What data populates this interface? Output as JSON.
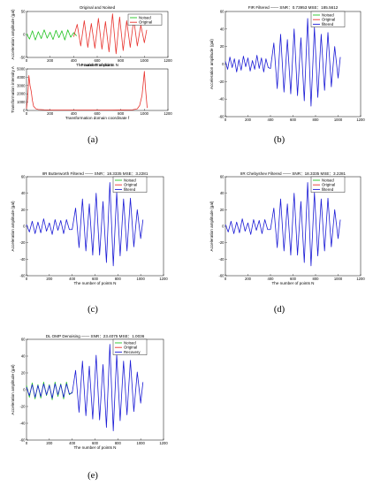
{
  "colors": {
    "noised": "#22c322",
    "original": "#e8332e",
    "filtered": "#1c1cd6",
    "fourier": "#e8332e",
    "fourierBase": "#22c322"
  },
  "captions": [
    "(a)",
    "(b)",
    "(c)",
    "(d)",
    "(e)"
  ],
  "chart_data": [
    {
      "id": "a1",
      "type": "line",
      "title": "Original and Noised",
      "xlabel": "The number of points N",
      "ylabel": "Acceleration amplitude (gal)",
      "xlim": [
        0,
        1200
      ],
      "ylim": [
        -50,
        50
      ],
      "xticks": [
        "0",
        "200",
        "400",
        "600",
        "800",
        "1000",
        "1200"
      ],
      "yticks": [
        "-50",
        "0",
        "50"
      ],
      "legend": {
        "position": "top-right",
        "entries": [
          "Noised",
          "Original"
        ]
      },
      "series": [
        {
          "name": "Noised",
          "color_key": "noised",
          "x": [
            0,
            25,
            50,
            75,
            100,
            125,
            150,
            175,
            200,
            225,
            250,
            275,
            300,
            325,
            350,
            375,
            400,
            425
          ],
          "y": [
            2,
            -10,
            8,
            -12,
            6,
            -9,
            10,
            -8,
            5,
            -11,
            9,
            -7,
            8,
            -12,
            10,
            -6,
            4,
            -3
          ]
        },
        {
          "name": "Original",
          "color_key": "original",
          "x": [
            400,
            430,
            460,
            490,
            520,
            550,
            580,
            610,
            640,
            670,
            700,
            730,
            760,
            790,
            820,
            850,
            880,
            910,
            940,
            970,
            1000,
            1020
          ],
          "y": [
            -5,
            22,
            -25,
            30,
            -28,
            24,
            -30,
            35,
            -32,
            28,
            -38,
            45,
            -42,
            38,
            -35,
            30,
            -28,
            33,
            -25,
            20,
            -18,
            10
          ]
        }
      ]
    },
    {
      "id": "a2",
      "type": "line",
      "title": "Fourier Transform",
      "xlabel": "Transformation domain coordinate f",
      "ylabel": "Transformation intensity A",
      "xlim": [
        0,
        1200
      ],
      "ylim": [
        0,
        5000
      ],
      "xticks": [
        "0",
        "200",
        "400",
        "600",
        "800",
        "1000",
        "1200"
      ],
      "yticks": [
        "0",
        "1000",
        "2000",
        "3000",
        "4000",
        "5000"
      ],
      "series": [
        {
          "name": "",
          "color_key": "fourier",
          "x": [
            0,
            10,
            20,
            30,
            40,
            50,
            60,
            80,
            100,
            150,
            200,
            400,
            600,
            800,
            900,
            940,
            960,
            980,
            990,
            1000,
            1010,
            1024
          ],
          "y": [
            200,
            1500,
            4200,
            3000,
            2300,
            1200,
            500,
            200,
            120,
            80,
            60,
            50,
            50,
            60,
            80,
            200,
            600,
            1800,
            3200,
            4700,
            2600,
            300
          ]
        }
      ]
    },
    {
      "id": "b",
      "type": "line",
      "title": "FIR Filtered  ——  SNR：0.73953   MSE：185.5612",
      "xlabel": "",
      "ylabel": "Acceleration amplitude (gal)",
      "xlim": [
        0,
        1200
      ],
      "ylim": [
        -60,
        60
      ],
      "xticks": [
        "0",
        "200",
        "400",
        "600",
        "800",
        "1000",
        "1200"
      ],
      "yticks": [
        "-60",
        "-40",
        "-20",
        "0",
        "20",
        "40",
        "60"
      ],
      "legend": {
        "position": "top-right",
        "entries": [
          "Noised",
          "Original",
          "filtered"
        ]
      },
      "series": [
        {
          "name": "filtered",
          "color_key": "filtered",
          "x": [
            0,
            20,
            40,
            60,
            80,
            100,
            120,
            140,
            160,
            180,
            200,
            220,
            240,
            260,
            280,
            300,
            320,
            340,
            360,
            380,
            400,
            430,
            460,
            490,
            520,
            550,
            580,
            610,
            640,
            670,
            700,
            730,
            760,
            790,
            820,
            850,
            880,
            910,
            940,
            970,
            1000,
            1020
          ],
          "y": [
            3,
            -6,
            8,
            -4,
            6,
            -9,
            5,
            -7,
            9,
            -3,
            7,
            -8,
            4,
            -6,
            10,
            -5,
            7,
            -9,
            6,
            -4,
            -5,
            24,
            -28,
            34,
            -32,
            28,
            -34,
            40,
            -36,
            30,
            -42,
            52,
            -48,
            42,
            -38,
            34,
            -30,
            36,
            -26,
            20,
            -16,
            8
          ]
        }
      ]
    },
    {
      "id": "c",
      "type": "line",
      "title": "IIR Butterworth Filtered  ——  SNR：18.3335   MSE：3.2281",
      "xlabel": "The number of points N",
      "ylabel": "Acceleration amplitude (gal)",
      "xlim": [
        0,
        1200
      ],
      "ylim": [
        -60,
        60
      ],
      "xticks": [
        "0",
        "200",
        "400",
        "600",
        "800",
        "1000",
        "1200"
      ],
      "yticks": [
        "-60",
        "-40",
        "-20",
        "0",
        "20",
        "40",
        "60"
      ],
      "legend": {
        "position": "top-right",
        "entries": [
          "Noised",
          "Original",
          "filtered"
        ]
      },
      "series": [
        {
          "name": "filtered",
          "color_key": "filtered",
          "x": [
            0,
            25,
            50,
            75,
            100,
            125,
            150,
            175,
            200,
            225,
            250,
            275,
            300,
            325,
            350,
            375,
            400,
            430,
            460,
            490,
            520,
            550,
            580,
            610,
            640,
            670,
            700,
            730,
            760,
            790,
            820,
            850,
            880,
            910,
            940,
            970,
            1000,
            1020
          ],
          "y": [
            2,
            -7,
            6,
            -9,
            5,
            -8,
            9,
            -6,
            4,
            -10,
            8,
            -5,
            7,
            -9,
            8,
            -4,
            -4,
            22,
            -26,
            33,
            -30,
            27,
            -35,
            40,
            -35,
            30,
            -44,
            53,
            -48,
            41,
            -36,
            33,
            -30,
            34,
            -25,
            20,
            -15,
            8
          ]
        }
      ]
    },
    {
      "id": "d",
      "type": "line",
      "title": "IIR Chebyshev Filtered  ——  SNR：18.3335   MSE：3.2281",
      "xlabel": "The number of points N",
      "ylabel": "Acceleration amplitude (gal)",
      "xlim": [
        0,
        1200
      ],
      "ylim": [
        -60,
        60
      ],
      "xticks": [
        "0",
        "200",
        "400",
        "600",
        "800",
        "1000",
        "1200"
      ],
      "yticks": [
        "-60",
        "-40",
        "-20",
        "0",
        "20",
        "40",
        "60"
      ],
      "legend": {
        "position": "top-right",
        "entries": [
          "Noised",
          "Original",
          "filtered"
        ]
      },
      "series": [
        {
          "name": "filtered",
          "color_key": "filtered",
          "x": [
            0,
            25,
            50,
            75,
            100,
            125,
            150,
            175,
            200,
            225,
            250,
            275,
            300,
            325,
            350,
            375,
            400,
            430,
            460,
            490,
            520,
            550,
            580,
            610,
            640,
            670,
            700,
            730,
            760,
            790,
            820,
            850,
            880,
            910,
            940,
            970,
            1000,
            1020
          ],
          "y": [
            2,
            -7,
            6,
            -9,
            5,
            -8,
            9,
            -6,
            4,
            -10,
            8,
            -5,
            7,
            -9,
            8,
            -4,
            -4,
            22,
            -26,
            33,
            -30,
            27,
            -35,
            40,
            -35,
            30,
            -44,
            53,
            -48,
            41,
            -36,
            33,
            -30,
            34,
            -25,
            20,
            -15,
            8
          ]
        }
      ]
    },
    {
      "id": "e",
      "type": "line",
      "title": "DL OMP Denoising  ——  SNR：23.4075   MSE：1.0036",
      "xlabel": "The number of points N",
      "ylabel": "Acceleration amplitude (gal)",
      "xlim": [
        0,
        1200
      ],
      "ylim": [
        -60,
        60
      ],
      "xticks": [
        "0",
        "200",
        "400",
        "600",
        "800",
        "1000",
        "1200"
      ],
      "yticks": [
        "-60",
        "-40",
        "-20",
        "0",
        "20",
        "40",
        "60"
      ],
      "legend": {
        "position": "top-right",
        "entries": [
          "Noised",
          "Original",
          "Recovery"
        ]
      },
      "series": [
        {
          "name": "Noised",
          "color_key": "noised",
          "x": [
            0,
            25,
            50,
            75,
            100,
            125,
            150,
            175,
            200,
            225,
            250,
            275,
            300,
            325,
            350,
            375,
            400
          ],
          "y": [
            5,
            -9,
            8,
            -11,
            6,
            -10,
            9,
            -7,
            6,
            -12,
            9,
            -8,
            7,
            -11,
            9,
            -6,
            -3
          ]
        },
        {
          "name": "Recovery",
          "color_key": "filtered",
          "x": [
            0,
            25,
            50,
            75,
            100,
            125,
            150,
            175,
            200,
            225,
            250,
            275,
            300,
            325,
            350,
            375,
            400,
            430,
            460,
            490,
            520,
            550,
            580,
            610,
            640,
            670,
            700,
            730,
            760,
            790,
            820,
            850,
            880,
            910,
            940,
            970,
            1000,
            1020
          ],
          "y": [
            3,
            -7,
            6,
            -9,
            5,
            -8,
            7,
            -6,
            5,
            -10,
            7,
            -6,
            6,
            -9,
            7,
            -5,
            -4,
            23,
            -27,
            34,
            -31,
            28,
            -35,
            41,
            -36,
            30,
            -45,
            54,
            -49,
            42,
            -37,
            34,
            -30,
            35,
            -26,
            21,
            -16,
            9
          ]
        }
      ]
    }
  ]
}
